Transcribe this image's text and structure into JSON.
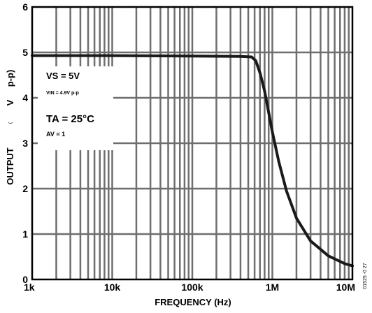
{
  "chart_data": {
    "type": "line",
    "x_scale": "log",
    "xlim": [
      1000,
      10000000
    ],
    "ylim": [
      0,
      6
    ],
    "grid": true,
    "xlabel": "FREQUENCY (Hz)",
    "ylabel": {
      "output": "OUTPUT",
      "v": "V",
      "pp": "p-p)",
      "small": "("
    },
    "x_ticks": [
      {
        "value": 1000,
        "label": "1k"
      },
      {
        "value": 10000,
        "label": "10k"
      },
      {
        "value": 100000,
        "label": "100k"
      },
      {
        "value": 1000000,
        "label": "1M"
      },
      {
        "value": 10000000,
        "label": "10M"
      }
    ],
    "y_ticks": [
      {
        "value": 0,
        "label": "0"
      },
      {
        "value": 1,
        "label": "1"
      },
      {
        "value": 2,
        "label": "2"
      },
      {
        "value": 3,
        "label": "3"
      },
      {
        "value": 4,
        "label": "4"
      },
      {
        "value": 5,
        "label": "5"
      },
      {
        "value": 6,
        "label": "6"
      }
    ],
    "series": [
      {
        "x": [
          1000,
          10000,
          100000,
          400000,
          550000,
          620000,
          700000,
          800000,
          1000000,
          1200000,
          1500000,
          2000000,
          3000000,
          5000000,
          8000000,
          10000000
        ],
        "y": [
          4.93,
          4.93,
          4.92,
          4.91,
          4.9,
          4.82,
          4.55,
          4.15,
          3.25,
          2.6,
          1.95,
          1.35,
          0.85,
          0.52,
          0.35,
          0.3
        ],
        "color": "#1a1a1a"
      }
    ],
    "annotations": {
      "vs": "VS = 5V",
      "vin": "VIN = 4.9V p-p",
      "ta": "TA = 25°C",
      "av": "AV = 1"
    },
    "figure_id": "01525 -0 27"
  }
}
